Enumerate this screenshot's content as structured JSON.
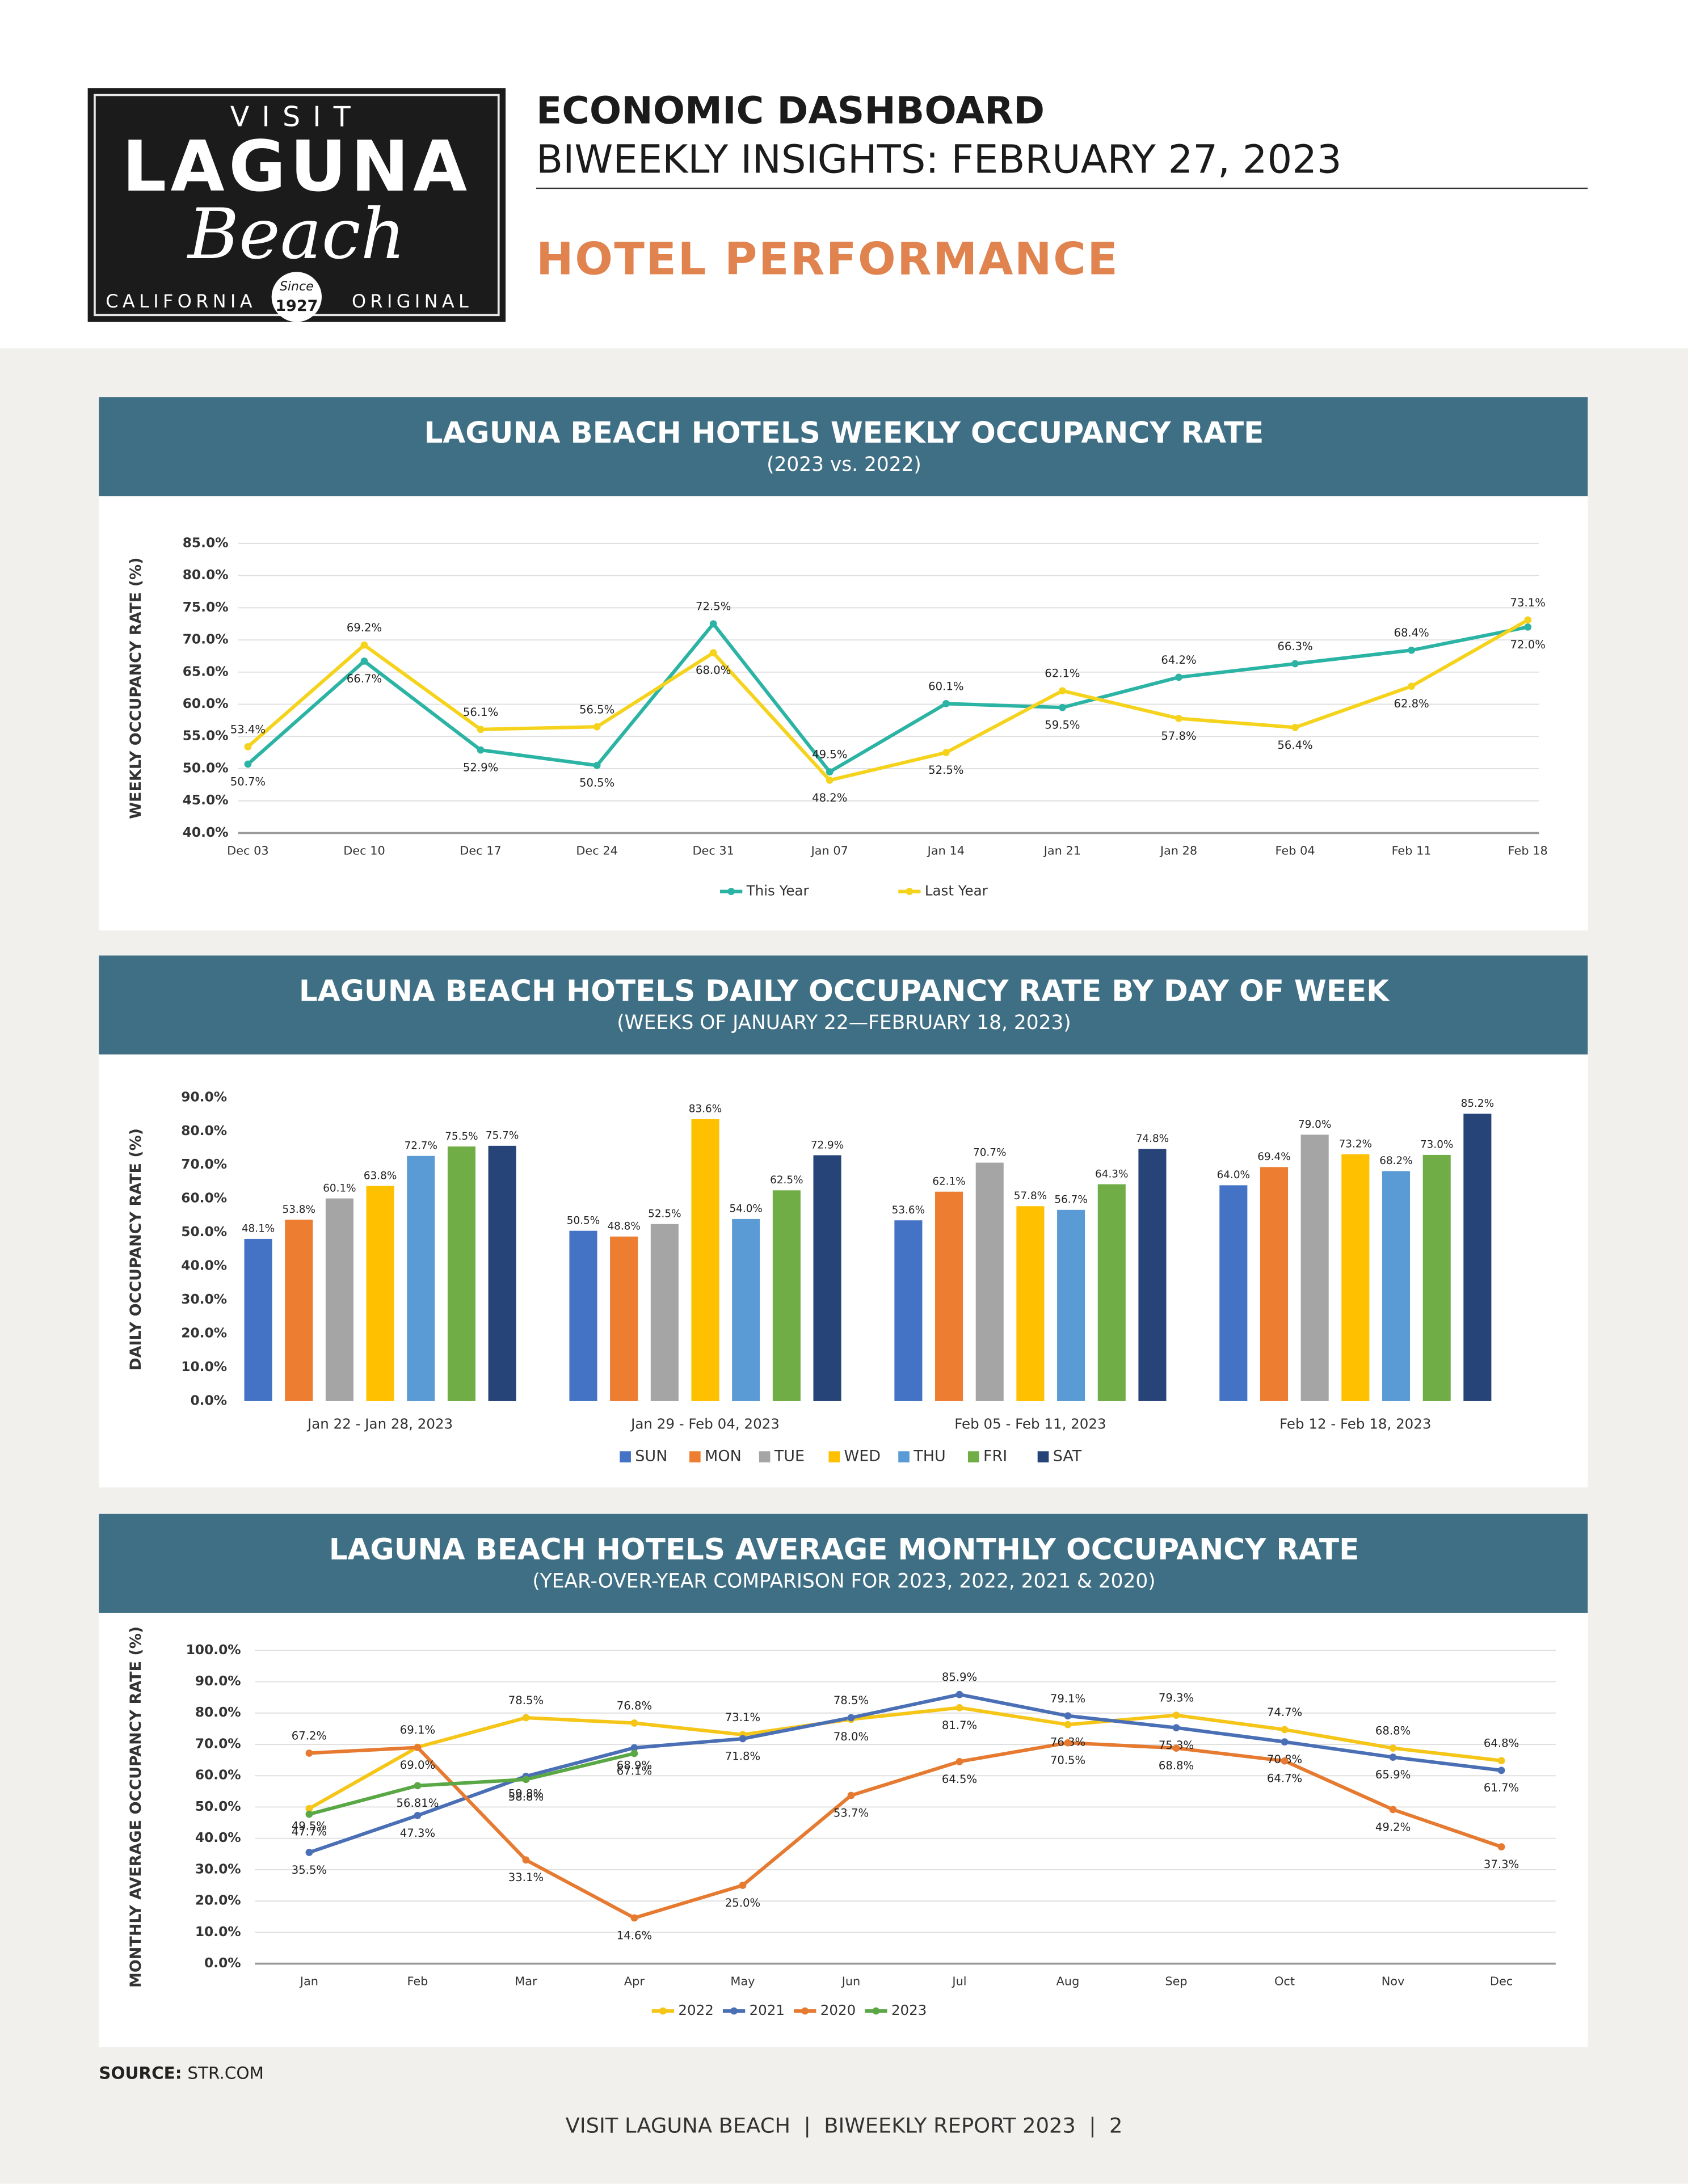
{
  "header": {
    "logo": {
      "visit": "VISIT",
      "laguna": "LAGUNA",
      "beach": "Beach",
      "california": "CALIFORNIA",
      "since": "Since",
      "year": "1927",
      "original": "ORIGINAL"
    },
    "title": "ECONOMIC DASHBOARD",
    "subtitle": "BIWEEKLY INSIGHTS: FEBRUARY 27, 2023",
    "section": "HOTEL PERFORMANCE"
  },
  "chart_data": [
    {
      "type": "line",
      "title": "LAGUNA BEACH HOTELS WEEKLY OCCUPANCY RATE",
      "subtitle": "(2023 vs. 2022)",
      "y_label": "WEEKLY OCCUPANCY RATE (%)",
      "categories": [
        "Dec 03",
        "Dec 10",
        "Dec 17",
        "Dec 24",
        "Dec 31",
        "Jan 07",
        "Jan 14",
        "Jan 21",
        "Jan 28",
        "Feb 04",
        "Feb 11",
        "Feb 18"
      ],
      "series": [
        {
          "name": "This Year",
          "color": "#2bb3a3",
          "values": [
            50.7,
            66.7,
            52.9,
            50.5,
            72.5,
            49.5,
            60.1,
            59.5,
            64.2,
            66.3,
            68.4,
            72.0
          ],
          "value_labels": [
            "50.7%",
            "66.7%",
            "52.9%",
            "50.5%",
            "72.5%",
            "49.5%",
            "60.1%",
            "59.5%",
            "64.2%",
            "66.3%",
            "68.4%",
            "72.0%"
          ]
        },
        {
          "name": "Last Year",
          "color": "#f5d31c",
          "values": [
            53.4,
            69.2,
            56.1,
            56.5,
            68.0,
            48.2,
            52.5,
            62.1,
            57.8,
            56.4,
            62.8,
            73.1
          ],
          "value_labels": [
            "53.4%",
            "69.2%",
            "56.1%",
            "56.5%",
            "68.0%",
            "48.2%",
            "52.5%",
            "62.1%",
            "57.8%",
            "56.4%",
            "62.8%",
            "73.1%"
          ]
        }
      ],
      "ylim": [
        40,
        85
      ],
      "yticks": [
        {
          "value": 40,
          "label": "40.0%"
        },
        {
          "value": 45,
          "label": "45.0%"
        },
        {
          "value": 50,
          "label": "50.0%"
        },
        {
          "value": 55,
          "label": "55.0%"
        },
        {
          "value": 60,
          "label": "60.0%"
        },
        {
          "value": 65,
          "label": "65.0%"
        },
        {
          "value": 70,
          "label": "70.0%"
        },
        {
          "value": 75,
          "label": "75.0%"
        },
        {
          "value": 80,
          "label": "80.0%"
        },
        {
          "value": 85,
          "label": "85.0%"
        }
      ],
      "grid": true,
      "legend": "bottom"
    },
    {
      "type": "bar",
      "title": "LAGUNA BEACH HOTELS DAILY OCCUPANCY RATE BY DAY OF WEEK",
      "subtitle": "(WEEKS OF JANUARY 22—FEBRUARY 18, 2023)",
      "y_label": "DAILY OCCUPANCY RATE (%)",
      "categories": [
        "Jan 22 - Jan 28, 2023",
        "Jan 29 - Feb 04, 2023",
        "Feb 05 - Feb 11, 2023",
        "Feb 12 - Feb 18, 2023"
      ],
      "series": [
        {
          "name": "SUN",
          "color": "#4472c4",
          "values": [
            48.1,
            50.5,
            53.6,
            64.0
          ],
          "value_labels": [
            "48.1%",
            "50.5%",
            "53.6%",
            "64.0%"
          ]
        },
        {
          "name": "MON",
          "color": "#ed7d31",
          "values": [
            53.8,
            48.8,
            62.1,
            69.4
          ],
          "value_labels": [
            "53.8%",
            "48.8%",
            "62.1%",
            "69.4%"
          ]
        },
        {
          "name": "TUE",
          "color": "#a5a5a5",
          "values": [
            60.1,
            52.5,
            70.7,
            79.0
          ],
          "value_labels": [
            "60.1%",
            "52.5%",
            "70.7%",
            "79.0%"
          ]
        },
        {
          "name": "WED",
          "color": "#ffc000",
          "values": [
            63.8,
            83.6,
            57.8,
            73.2
          ],
          "value_labels": [
            "63.8%",
            "83.6%",
            "57.8%",
            "73.2%"
          ]
        },
        {
          "name": "THU",
          "color": "#5b9bd5",
          "values": [
            72.7,
            54.0,
            56.7,
            68.2
          ],
          "value_labels": [
            "72.7%",
            "54.0%",
            "56.7%",
            "68.2%"
          ]
        },
        {
          "name": "FRI",
          "color": "#70ad47",
          "values": [
            75.5,
            62.5,
            64.3,
            73.0
          ],
          "value_labels": [
            "75.5%",
            "62.5%",
            "64.3%",
            "73.0%"
          ]
        },
        {
          "name": "SAT",
          "color": "#264478",
          "values": [
            75.7,
            72.9,
            74.8,
            85.2
          ],
          "value_labels": [
            "75.7%",
            "72.9%",
            "74.8%",
            "85.2%"
          ]
        }
      ],
      "ylim": [
        0,
        90
      ],
      "yticks": [
        {
          "value": 0,
          "label": "0.0%"
        },
        {
          "value": 10,
          "label": "10.0%"
        },
        {
          "value": 20,
          "label": "20.0%"
        },
        {
          "value": 30,
          "label": "30.0%"
        },
        {
          "value": 40,
          "label": "40.0%"
        },
        {
          "value": 50,
          "label": "50.0%"
        },
        {
          "value": 60,
          "label": "60.0%"
        },
        {
          "value": 70,
          "label": "70.0%"
        },
        {
          "value": 80,
          "label": "80.0%"
        },
        {
          "value": 90,
          "label": "90.0%"
        }
      ],
      "grid": false,
      "legend": "bottom"
    },
    {
      "type": "line",
      "title": "LAGUNA BEACH HOTELS AVERAGE MONTHLY OCCUPANCY RATE",
      "subtitle": "(YEAR-OVER-YEAR COMPARISON FOR 2023, 2022, 2021 & 2020)",
      "y_label": "MONTHLY AVERAGE OCCUPANCY RATE (%)",
      "categories": [
        "Jan",
        "Feb",
        "Mar",
        "Apr",
        "May",
        "Jun",
        "Jul",
        "Aug",
        "Sep",
        "Oct",
        "Nov",
        "Dec"
      ],
      "series": [
        {
          "name": "2022",
          "color": "#f5c518",
          "values": [
            49.5,
            69.1,
            78.5,
            76.8,
            73.1,
            78.0,
            81.7,
            76.3,
            79.3,
            74.7,
            68.8,
            64.8
          ],
          "value_labels": [
            "49.5%",
            "69.1%",
            "78.5%",
            "76.8%",
            "73.1%",
            "78.0%",
            "81.7%",
            "76.3%",
            "79.3%",
            "74.7%",
            "68.8%",
            "64.8%"
          ]
        },
        {
          "name": "2021",
          "color": "#4a6fb5",
          "values": [
            35.5,
            47.3,
            59.8,
            68.9,
            71.8,
            78.5,
            85.9,
            79.1,
            75.3,
            70.8,
            65.9,
            61.7
          ],
          "value_labels": [
            "35.5%",
            "47.3%",
            "59.8%",
            "68.9%",
            "71.8%",
            "78.5%",
            "85.9%",
            "79.1%",
            "75.3%",
            "70.8%",
            "65.9%",
            "61.7%"
          ]
        },
        {
          "name": "2020",
          "color": "#e57a30",
          "values": [
            67.2,
            69.0,
            33.1,
            14.6,
            25.0,
            53.7,
            64.5,
            70.5,
            68.8,
            64.7,
            49.2,
            37.3
          ],
          "value_labels": [
            "67.2%",
            "69.0%",
            "33.1%",
            "14.6%",
            "25.0%",
            "53.7%",
            "64.5%",
            "70.5%",
            "68.8%",
            "64.7%",
            "49.2%",
            "37.3%"
          ]
        },
        {
          "name": "2023",
          "color": "#5aa845",
          "values": [
            47.7,
            56.81,
            58.8,
            67.1,
            null,
            null,
            null,
            null,
            null,
            null,
            null,
            null
          ],
          "value_labels": [
            "47.7%",
            "56.81%",
            "58.8%",
            "67.1%",
            null,
            null,
            null,
            null,
            null,
            null,
            null,
            null
          ]
        }
      ],
      "ylim": [
        0,
        100
      ],
      "yticks": [
        {
          "value": 0,
          "label": "0.0%"
        },
        {
          "value": 10,
          "label": "10.0%"
        },
        {
          "value": 20,
          "label": "20.0%"
        },
        {
          "value": 30,
          "label": "30.0%"
        },
        {
          "value": 40,
          "label": "40.0%"
        },
        {
          "value": 50,
          "label": "50.0%"
        },
        {
          "value": 60,
          "label": "60.0%"
        },
        {
          "value": 70,
          "label": "70.0%"
        },
        {
          "value": 80,
          "label": "80.0%"
        },
        {
          "value": 90,
          "label": "90.0%"
        },
        {
          "value": 100,
          "label": "100.0%"
        }
      ],
      "grid": true,
      "legend": "bottom"
    }
  ],
  "source": {
    "label": "SOURCE:",
    "text": "STR.COM"
  },
  "footer": "VISIT LAGUNA BEACH  |  BIWEEKLY REPORT 2023  |  2"
}
